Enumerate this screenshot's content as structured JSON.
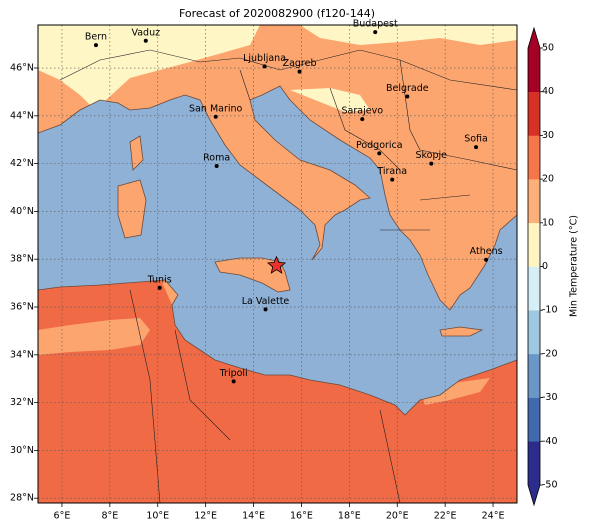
{
  "title": "Forecast of 2020082900 (f120-144)",
  "map": {
    "lonlim": [
      5,
      25
    ],
    "latlim": [
      27.8,
      47.8
    ],
    "grid": true,
    "xticks": [
      {
        "value": 6,
        "label": "6°E"
      },
      {
        "value": 8,
        "label": "8°E"
      },
      {
        "value": 10,
        "label": "10°E"
      },
      {
        "value": 12,
        "label": "12°E"
      },
      {
        "value": 14,
        "label": "14°E"
      },
      {
        "value": 16,
        "label": "16°E"
      },
      {
        "value": 18,
        "label": "18°E"
      },
      {
        "value": 20,
        "label": "20°E"
      },
      {
        "value": 22,
        "label": "22°E"
      },
      {
        "value": 24,
        "label": "24°E"
      }
    ],
    "yticks": [
      {
        "value": 28,
        "label": "28°N"
      },
      {
        "value": 30,
        "label": "30°N"
      },
      {
        "value": 32,
        "label": "32°N"
      },
      {
        "value": 34,
        "label": "34°N"
      },
      {
        "value": 36,
        "label": "36°N"
      },
      {
        "value": 38,
        "label": "38°N"
      },
      {
        "value": 40,
        "label": "40°N"
      },
      {
        "value": 42,
        "label": "42°N"
      },
      {
        "value": 44,
        "label": "44°N"
      },
      {
        "value": 46,
        "label": "46°N"
      }
    ],
    "cities": [
      {
        "name": "Bern",
        "lon": 7.42,
        "lat": 46.96
      },
      {
        "name": "Vaduz",
        "lon": 9.5,
        "lat": 47.14
      },
      {
        "name": "Budapest",
        "lon": 19.08,
        "lat": 47.5
      },
      {
        "name": "Ljubljana",
        "lon": 14.46,
        "lat": 46.07
      },
      {
        "name": "Zagreb",
        "lon": 15.92,
        "lat": 45.85
      },
      {
        "name": "Belgrade",
        "lon": 20.42,
        "lat": 44.81
      },
      {
        "name": "San Marino",
        "lon": 12.42,
        "lat": 43.96
      },
      {
        "name": "Sarajevo",
        "lon": 18.54,
        "lat": 43.86
      },
      {
        "name": "Sofia",
        "lon": 23.29,
        "lat": 42.69
      },
      {
        "name": "Roma",
        "lon": 12.46,
        "lat": 41.9
      },
      {
        "name": "Podgorica",
        "lon": 19.25,
        "lat": 42.43
      },
      {
        "name": "Skopje",
        "lon": 21.42,
        "lat": 42.0
      },
      {
        "name": "Tirana",
        "lon": 19.79,
        "lat": 41.33
      },
      {
        "name": "Athens",
        "lon": 23.71,
        "lat": 37.98
      },
      {
        "name": "Tunis",
        "lon": 10.08,
        "lat": 36.8
      },
      {
        "name": "La Valette",
        "lon": 14.5,
        "lat": 35.9
      },
      {
        "name": "Tripoli",
        "lon": 13.17,
        "lat": 32.89
      }
    ],
    "marker": {
      "lon": 14.96,
      "lat": 37.73,
      "color": "#e8322b"
    }
  },
  "colorbar": {
    "label": "Min Temperature (°C)",
    "lim": [
      -50,
      50
    ],
    "ticks": [
      -50,
      -40,
      -30,
      -20,
      -10,
      0,
      10,
      20,
      30,
      40,
      50
    ],
    "colors": [
      "#2c2c8c",
      "#4169ad",
      "#6a97c8",
      "#9ec8e0",
      "#d6eef5",
      "#fff5c0",
      "#fdb07a",
      "#f4764a",
      "#d73027",
      "#a50026"
    ]
  }
}
